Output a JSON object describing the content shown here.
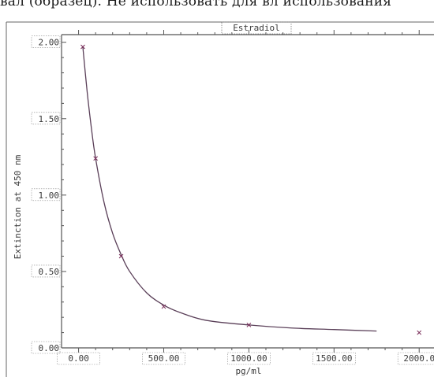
{
  "header": {
    "cutoff_text": "вал (образец). Не использовать для вл использования"
  },
  "chart_data": {
    "type": "line",
    "title": "Estradiol",
    "xlabel": "pg/ml",
    "ylabel": "Extinction at 450 nm",
    "xlim": [
      -100,
      2050
    ],
    "ylim": [
      0,
      2.05
    ],
    "x_ticks": [
      0,
      500,
      1000,
      1500,
      2000
    ],
    "x_tick_labels": [
      "0.00",
      "500.00",
      "1000.00",
      "1500.00",
      "2000.0"
    ],
    "y_ticks": [
      0,
      0.5,
      1.0,
      1.5,
      2.0
    ],
    "y_tick_labels": [
      "0.00",
      "0.50",
      "1.00",
      "1.50",
      "2.00"
    ],
    "grid": false,
    "series": [
      {
        "type": "scatter",
        "marker": "x",
        "x": [
          25,
          100,
          250,
          500,
          1000,
          2000
        ],
        "y": [
          1.97,
          1.24,
          0.6,
          0.27,
          0.15,
          0.1
        ]
      },
      {
        "type": "line",
        "x": [
          25,
          50,
          75,
          100,
          150,
          200,
          250,
          300,
          400,
          500,
          600,
          750,
          1000,
          1250,
          1500,
          1750
        ],
        "y": [
          1.97,
          1.68,
          1.44,
          1.24,
          0.95,
          0.75,
          0.61,
          0.5,
          0.36,
          0.28,
          0.23,
          0.18,
          0.15,
          0.13,
          0.12,
          0.11
        ]
      }
    ],
    "colors": {
      "curve": "#5a3f58",
      "marker": "#7a2e5a",
      "axis": "#555555"
    }
  }
}
